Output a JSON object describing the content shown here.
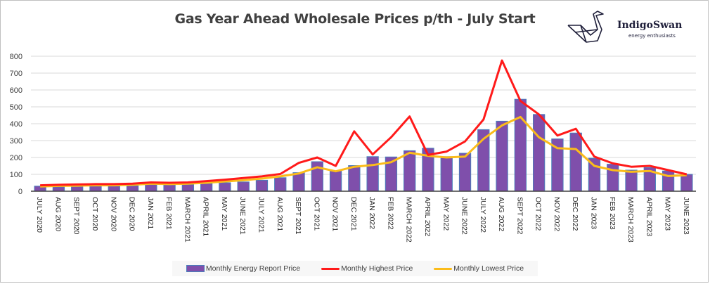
{
  "chart_data": {
    "type": "bar",
    "title": "Gas Year Ahead Wholesale Prices p/th - July Start",
    "xlabel": "",
    "ylabel": "",
    "ylim": [
      0,
      800
    ],
    "yticks": [
      0,
      100,
      200,
      300,
      400,
      500,
      600,
      700,
      800
    ],
    "grid": true,
    "legend_position": "bottom",
    "categories": [
      "JULY 2020",
      "AUG 2020",
      "SEPT 2020",
      "OCT 2020",
      "NOV 2020",
      "DEC 2020",
      "JAN 2021",
      "FEB 2021",
      "MARCH 2021",
      "APRIL 2021",
      "MAY 2021",
      "JUNE 2021",
      "JULY 2021",
      "AUG 2021",
      "SEPT 2021",
      "OCT 2021",
      "NOV 2021",
      "DEC  2021",
      "JAN 2022",
      "FEB 2022",
      "MARCH 2022",
      "APRIL 2022",
      "MAY 2022",
      "JUNE 2022",
      "JULY 2022",
      "AUG 2022",
      "SEPT 2022",
      "OCT 2022",
      "NOV 2022",
      "DEC 2022",
      "JAN 2023",
      "FEB 2023",
      "MARCH 2023",
      "APRIL 2023",
      "MAY 2023",
      "JUNE 2023"
    ],
    "series": [
      {
        "name": "Monthly Energy Report Price",
        "type": "bar",
        "color": "#7f4fab",
        "values": [
          30,
          25,
          28,
          30,
          30,
          32,
          40,
          38,
          40,
          45,
          50,
          55,
          65,
          80,
          110,
          175,
          120,
          152,
          205,
          203,
          240,
          255,
          205,
          225,
          365,
          415,
          545,
          455,
          310,
          345,
          195,
          160,
          125,
          140,
          120,
          100
        ]
      },
      {
        "name": "Monthly Highest Price",
        "type": "line",
        "color": "#ff1a1a",
        "values": [
          35,
          38,
          40,
          42,
          42,
          45,
          52,
          50,
          52,
          60,
          68,
          78,
          88,
          102,
          168,
          200,
          150,
          355,
          218,
          320,
          443,
          215,
          235,
          295,
          425,
          775,
          535,
          455,
          330,
          370,
          205,
          165,
          145,
          150,
          125,
          100
        ]
      },
      {
        "name": "Monthly Lowest Price",
        "type": "line",
        "color": "#fbbc1a",
        "values": [
          28,
          32,
          33,
          35,
          35,
          38,
          45,
          42,
          45,
          50,
          58,
          65,
          75,
          88,
          105,
          142,
          118,
          145,
          155,
          172,
          228,
          210,
          200,
          205,
          310,
          390,
          440,
          320,
          255,
          250,
          150,
          125,
          115,
          120,
          90,
          95
        ]
      }
    ]
  },
  "logo": {
    "name": "IndigoSwan",
    "tagline": "energy enthusiasts",
    "icon": "origami-swan-icon"
  }
}
